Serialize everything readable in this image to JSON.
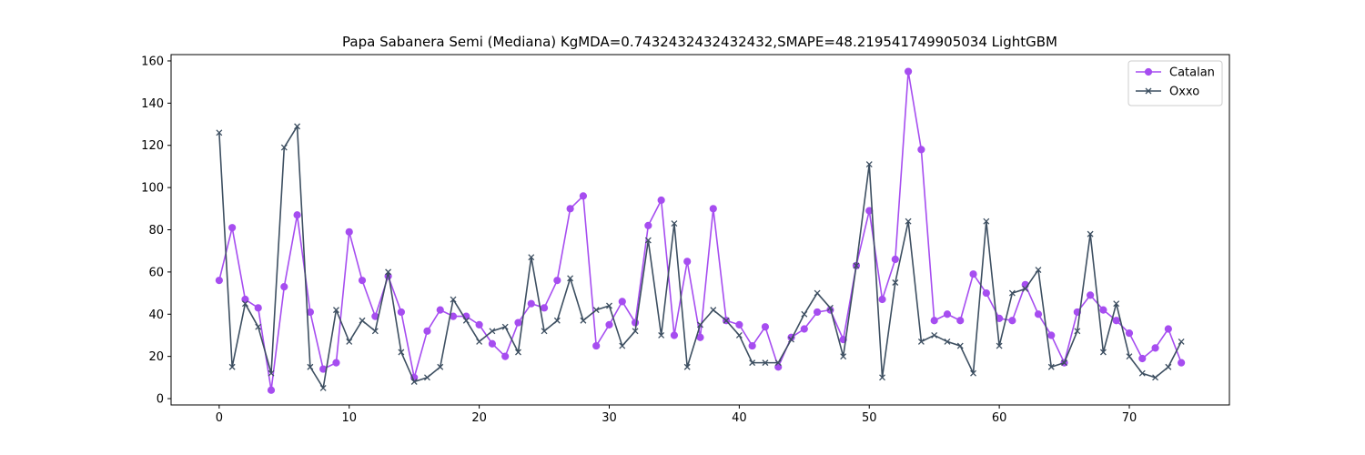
{
  "chart_data": {
    "type": "line",
    "title": "Papa Sabanera Semi (Mediana) KgMDA=0.7432432432432432,SMAPE=48.219541749905034 LightGBM",
    "xlabel": "",
    "ylabel": "",
    "xlim": [
      -3.7,
      77.7
    ],
    "ylim": [
      -3,
      163
    ],
    "xticks": [
      0,
      10,
      20,
      30,
      40,
      50,
      60,
      70
    ],
    "yticks": [
      0,
      20,
      40,
      60,
      80,
      100,
      120,
      140,
      160
    ],
    "grid": false,
    "legend_position": "top-right",
    "x": [
      0,
      1,
      2,
      3,
      4,
      5,
      6,
      7,
      8,
      9,
      10,
      11,
      12,
      13,
      14,
      15,
      16,
      17,
      18,
      19,
      20,
      21,
      22,
      23,
      24,
      25,
      26,
      27,
      28,
      29,
      30,
      31,
      32,
      33,
      34,
      35,
      36,
      37,
      38,
      39,
      40,
      41,
      42,
      43,
      44,
      45,
      46,
      47,
      48,
      49,
      50,
      51,
      52,
      53,
      54,
      55,
      56,
      57,
      58,
      59,
      60,
      61,
      62,
      63,
      64,
      65,
      66,
      67,
      68,
      69,
      70,
      71,
      72,
      73,
      74
    ],
    "series": [
      {
        "name": "Catalan",
        "color": "#a64df0",
        "marker": "circle",
        "values": [
          56,
          81,
          47,
          43,
          4,
          53,
          87,
          41,
          14,
          17,
          79,
          56,
          39,
          58,
          41,
          10,
          32,
          42,
          39,
          39,
          35,
          26,
          20,
          36,
          45,
          43,
          56,
          90,
          96,
          25,
          35,
          46,
          36,
          82,
          94,
          30,
          65,
          29,
          90,
          37,
          35,
          25,
          34,
          15,
          29,
          33,
          41,
          42,
          28,
          63,
          89,
          47,
          66,
          155,
          118,
          37,
          40,
          37,
          59,
          50,
          38,
          37,
          54,
          40,
          30,
          17,
          41,
          49,
          42,
          37,
          31,
          19,
          24,
          33,
          17
        ]
      },
      {
        "name": "Oxxo",
        "color": "#3d4f61",
        "marker": "x",
        "values": [
          126,
          15,
          45,
          34,
          12,
          119,
          129,
          15,
          5,
          42,
          27,
          37,
          32,
          60,
          22,
          8,
          10,
          15,
          47,
          37,
          27,
          32,
          34,
          22,
          67,
          32,
          37,
          57,
          37,
          42,
          44,
          25,
          32,
          75,
          30,
          83,
          15,
          35,
          42,
          37,
          30,
          17,
          17,
          17,
          28,
          40,
          50,
          43,
          20,
          63,
          111,
          10,
          55,
          84,
          27,
          30,
          27,
          25,
          12,
          84,
          25,
          50,
          52,
          61,
          15,
          17,
          32,
          78,
          22,
          45,
          20,
          12,
          10,
          15,
          27
        ]
      }
    ]
  }
}
